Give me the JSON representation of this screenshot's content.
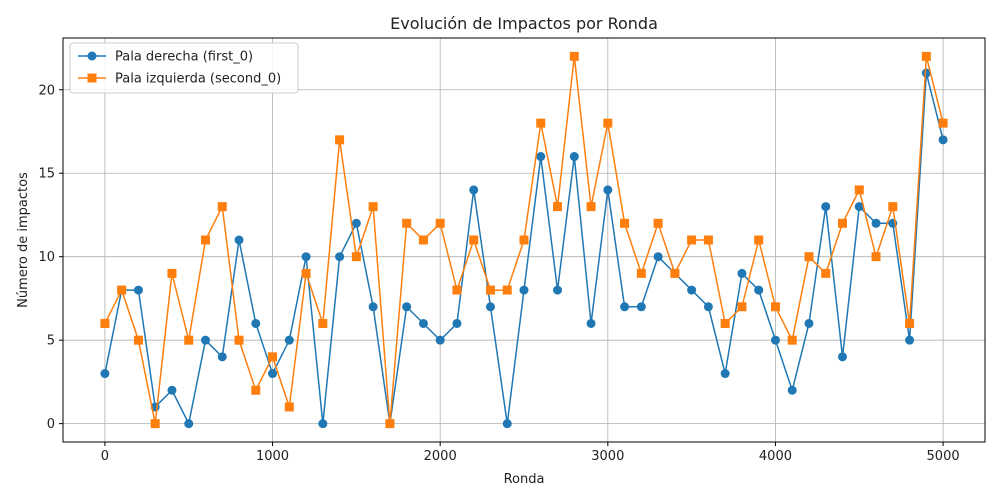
{
  "chart_data": {
    "type": "line",
    "title": "Evolución de Impactos por Ronda",
    "xlabel": "Ronda",
    "ylabel": "Número de impactos",
    "xlim": [
      -250,
      5250
    ],
    "ylim": [
      -1.1,
      23.1
    ],
    "xticks": [
      0,
      1000,
      2000,
      3000,
      4000,
      5000
    ],
    "yticks": [
      0,
      5,
      10,
      15,
      20
    ],
    "grid": true,
    "legend_position": "top-left",
    "x": [
      0,
      100,
      200,
      300,
      400,
      500,
      600,
      700,
      800,
      900,
      1000,
      1100,
      1200,
      1300,
      1400,
      1500,
      1600,
      1700,
      1800,
      1900,
      2000,
      2100,
      2200,
      2300,
      2400,
      2500,
      2600,
      2700,
      2800,
      2900,
      3000,
      3100,
      3200,
      3300,
      3400,
      3500,
      3600,
      3700,
      3800,
      3900,
      4000,
      4100,
      4200,
      4300,
      4400,
      4500,
      4600,
      4700,
      4800,
      4900,
      5000
    ],
    "series": [
      {
        "name": "Pala derecha (first_0)",
        "color": "#1f77b4",
        "marker": "circle",
        "values": [
          3,
          8,
          8,
          1,
          2,
          0,
          5,
          4,
          11,
          6,
          3,
          5,
          10,
          0,
          10,
          12,
          7,
          0,
          7,
          6,
          5,
          6,
          14,
          7,
          0,
          8,
          16,
          8,
          16,
          6,
          14,
          7,
          7,
          10,
          9,
          8,
          7,
          3,
          9,
          8,
          5,
          2,
          6,
          13,
          4,
          13,
          12,
          12,
          5,
          21,
          17
        ]
      },
      {
        "name": "Pala izquierda (second_0)",
        "color": "#ff7f0e",
        "marker": "square",
        "values": [
          6,
          8,
          5,
          0,
          9,
          5,
          11,
          13,
          5,
          2,
          4,
          1,
          9,
          6,
          17,
          10,
          13,
          0,
          12,
          11,
          12,
          8,
          11,
          8,
          8,
          11,
          18,
          13,
          22,
          13,
          18,
          12,
          9,
          12,
          9,
          11,
          11,
          6,
          7,
          11,
          7,
          5,
          10,
          9,
          12,
          14,
          10,
          13,
          6,
          22,
          18
        ]
      }
    ]
  }
}
